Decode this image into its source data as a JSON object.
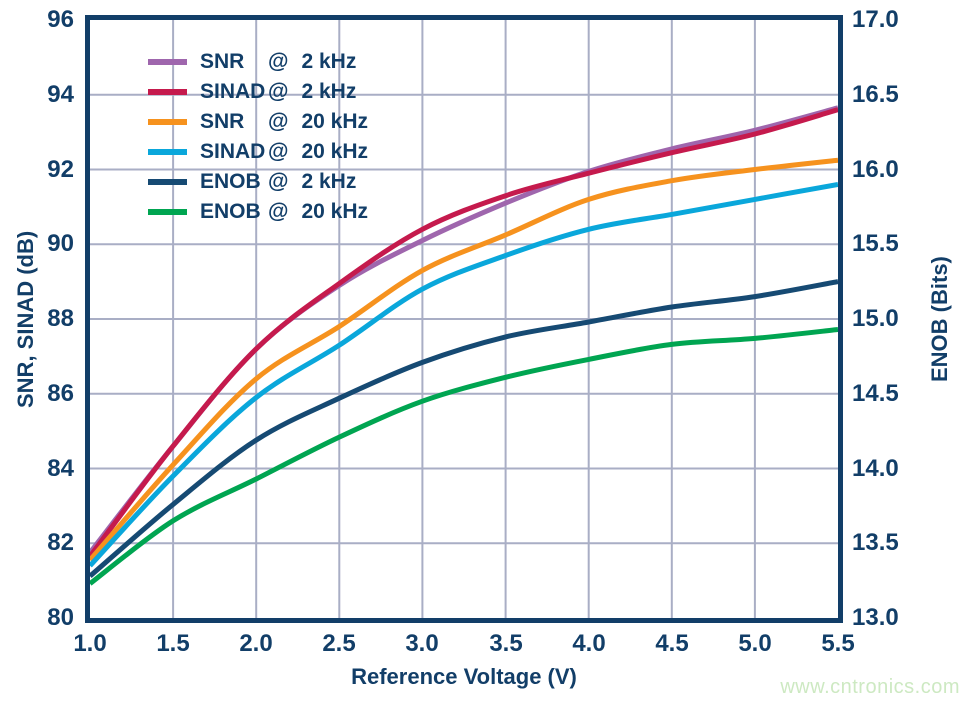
{
  "watermark": {
    "text": "www.cntronics.com",
    "color": "#cde9c2"
  },
  "chart_data": {
    "type": "line",
    "title": "",
    "xlabel": "Reference Voltage (V)",
    "ylabel_left": "SNR, SINAD (dB)",
    "ylabel_right": "ENOB (Bits)",
    "xlim": [
      1.0,
      5.5
    ],
    "ylim_left": [
      80,
      96
    ],
    "ylim_right": [
      13.0,
      17.0
    ],
    "grid": true,
    "legend_position": "upper-left-inside",
    "legend_at": "@",
    "x_ticks": [
      "1.0",
      "1.5",
      "2.0",
      "2.5",
      "3.0",
      "3.5",
      "4.0",
      "4.5",
      "5.0",
      "5.5"
    ],
    "left_ticks": [
      "96",
      "94",
      "92",
      "90",
      "88",
      "86",
      "84",
      "82",
      "80"
    ],
    "right_ticks": [
      "17.0",
      "16.5",
      "16.0",
      "15.5",
      "15.0",
      "14.5",
      "14.0",
      "13.5",
      "13.0"
    ],
    "x": [
      1.0,
      1.5,
      2.0,
      2.5,
      3.0,
      3.5,
      4.0,
      4.5,
      5.0,
      5.5
    ],
    "series": [
      {
        "name": "SNR",
        "freq": "2 kHz",
        "axis": "left",
        "unit": "dB",
        "color": "#9f66ad",
        "values": [
          81.75,
          84.6,
          87.2,
          88.9,
          90.1,
          91.1,
          91.95,
          92.55,
          93.05,
          93.65
        ]
      },
      {
        "name": "SINAD",
        "freq": "2 kHz",
        "axis": "left",
        "unit": "dB",
        "color": "#c51a4d",
        "values": [
          81.65,
          84.6,
          87.2,
          88.95,
          90.4,
          91.3,
          91.9,
          92.45,
          92.95,
          93.6
        ]
      },
      {
        "name": "SNR",
        "freq": "20 kHz",
        "axis": "left",
        "unit": "dB",
        "color": "#f6921e",
        "values": [
          81.55,
          84.1,
          86.4,
          87.8,
          89.3,
          90.25,
          91.2,
          91.7,
          92.0,
          92.25
        ]
      },
      {
        "name": "SINAD",
        "freq": "20 kHz",
        "axis": "left",
        "unit": "dB",
        "color": "#0aa7db",
        "values": [
          81.4,
          83.8,
          85.9,
          87.3,
          88.8,
          89.7,
          90.4,
          90.8,
          91.2,
          91.6
        ]
      },
      {
        "name": "ENOB",
        "freq": "2 kHz",
        "axis": "right",
        "unit": "Bits",
        "color": "#164a73",
        "values": [
          13.28,
          13.76,
          14.19,
          14.47,
          14.71,
          14.88,
          14.98,
          15.08,
          15.15,
          15.25
        ]
      },
      {
        "name": "ENOB",
        "freq": "20 kHz",
        "axis": "right",
        "unit": "Bits",
        "color": "#00a551",
        "values": [
          13.23,
          13.65,
          13.93,
          14.21,
          14.45,
          14.61,
          14.73,
          14.83,
          14.87,
          14.93
        ]
      }
    ],
    "colors": {
      "axis_frame": "#123e68",
      "grid": "#a9aec5",
      "text": "#123e68"
    }
  }
}
